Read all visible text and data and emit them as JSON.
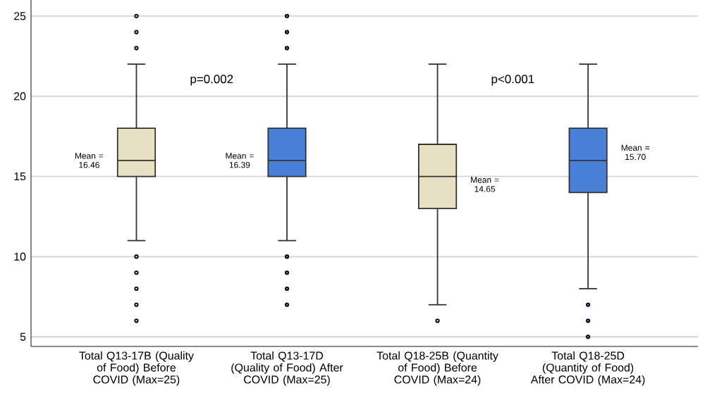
{
  "chart_data": {
    "type": "box",
    "categories": [
      "Total Q13-17B (Quality of Food) Before COVID (Max=25)",
      "Total Q13-17D (Quality of Food) After COVID (Max=25)",
      "Total Q18-25B (Quantity of Food) Before COVID (Max=24)",
      "Total Q18-25D (Quantity of Food) After COVID (Max=24)"
    ],
    "boxes": [
      {
        "low": 11,
        "q1": 15,
        "median": 16,
        "q3": 18,
        "high": 22,
        "outliers": [
          6,
          7,
          8,
          9,
          10,
          23,
          24,
          25
        ]
      },
      {
        "low": 11,
        "q1": 15,
        "median": 16,
        "q3": 18,
        "high": 22,
        "outliers": [
          7,
          8,
          9,
          10,
          23,
          24,
          25
        ]
      },
      {
        "low": 7,
        "q1": 13,
        "median": 15,
        "q3": 17,
        "high": 22,
        "outliers": [
          6
        ]
      },
      {
        "low": 8,
        "q1": 14,
        "median": 16,
        "q3": 18,
        "high": 22,
        "outliers": [
          5,
          6,
          7
        ]
      }
    ],
    "colors": [
      "#e8e0c2",
      "#4a7fd8",
      "#e8e0c2",
      "#4a7fd8"
    ],
    "ylim": [
      4.4,
      26
    ],
    "yticks": [
      5,
      10,
      15,
      20,
      25
    ],
    "grid": "y",
    "annotations": [
      "p=0.002",
      "p<0.001",
      "Mean = 16.46",
      "Mean = 16.39",
      "Mean = 14.65",
      "Mean = 15.70"
    ]
  }
}
